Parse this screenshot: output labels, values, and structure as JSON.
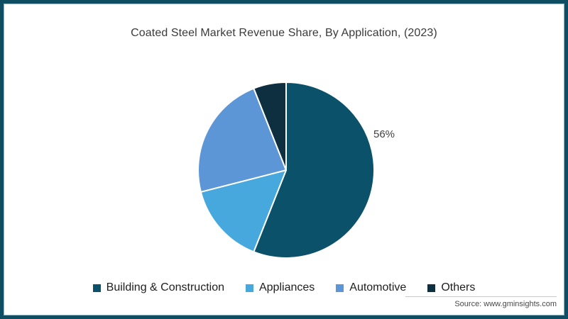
{
  "header": {
    "title": "Coated Steel Market Revenue Share, By Application, (2023)"
  },
  "footer": {
    "source": "Source: www.gminsights.com"
  },
  "colors": {
    "frame_border": "#0f4d63",
    "title_text": "#3a3a3a",
    "separator_lines": "#ffffff"
  },
  "chart_data": {
    "type": "pie",
    "title": "Coated Steel Market Revenue Share, By Application, (2023)",
    "legend_position": "bottom",
    "start_angle_deg": 0,
    "direction": "clockwise",
    "series": [
      {
        "name": "Building & Construction",
        "value": 56,
        "color": "#0a5169",
        "label": "56%"
      },
      {
        "name": "Appliances",
        "value": 15,
        "color": "#47a8de",
        "label": ""
      },
      {
        "name": "Automotive",
        "value": 23,
        "color": "#5c96d6",
        "label": ""
      },
      {
        "name": "Others",
        "value": 6,
        "color": "#0d2f3f",
        "label": ""
      }
    ]
  }
}
